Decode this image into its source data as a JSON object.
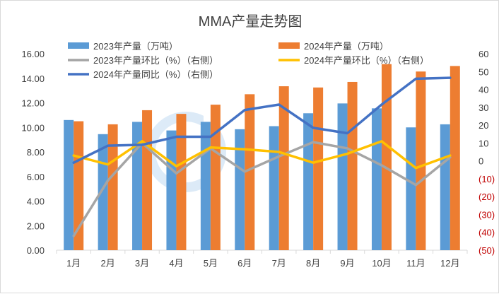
{
  "chart_data": {
    "type": "bar",
    "title": "MMA产量走势图",
    "categories": [
      "1月",
      "2月",
      "3月",
      "4月",
      "5月",
      "6月",
      "7月",
      "8月",
      "9月",
      "10月",
      "11月",
      "12月"
    ],
    "series": [
      {
        "name": "2023年产量（万吨）",
        "type": "bar",
        "axis": "left",
        "color": "#5b9bd5",
        "values": [
          10.6,
          9.45,
          10.45,
          9.75,
          10.45,
          9.85,
          10.1,
          11.15,
          11.95,
          11.55,
          10.0,
          10.25
        ]
      },
      {
        "name": "2024年产量（万吨）",
        "type": "bar",
        "axis": "left",
        "color": "#ed7d31",
        "values": [
          10.5,
          10.25,
          11.4,
          11.1,
          11.85,
          12.7,
          13.35,
          13.25,
          13.7,
          15.15,
          14.55,
          15.0
        ]
      },
      {
        "name": "2023年产量环比（%）（右侧）",
        "type": "line",
        "axis": "right",
        "color": "#a5a5a5",
        "values": [
          -42,
          -11,
          10,
          -7,
          7,
          -6,
          2.5,
          10.5,
          7,
          -2.5,
          -13.5,
          2
        ]
      },
      {
        "name": "2024年产量环比（%）（右侧）",
        "type": "line",
        "axis": "right",
        "color": "#ffc000",
        "values": [
          3,
          -2,
          11,
          -3,
          7.5,
          6.5,
          5,
          -1,
          4,
          11,
          -4,
          3
        ]
      },
      {
        "name": "2024年产量同比（%）（右侧）",
        "type": "line",
        "axis": "right",
        "color": "#4472c4",
        "values": [
          -1,
          8.5,
          9,
          13.5,
          13.5,
          28.5,
          31.5,
          18.5,
          15.5,
          31.5,
          46,
          46.5
        ]
      }
    ],
    "left_axis": {
      "min": 0,
      "max": 16,
      "ticks": [
        "0.00",
        "2.00",
        "4.00",
        "6.00",
        "8.00",
        "10.00",
        "12.00",
        "14.00",
        "16.00"
      ]
    },
    "right_axis": {
      "min": -50,
      "max": 60,
      "ticks": [
        "(50)",
        "(40)",
        "(30)",
        "(20)",
        "(10)",
        "0",
        "10",
        "20",
        "30",
        "40",
        "50",
        "60"
      ]
    },
    "grid": false,
    "legend_position": "top"
  }
}
